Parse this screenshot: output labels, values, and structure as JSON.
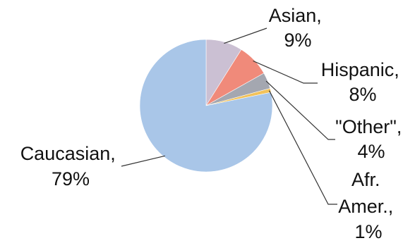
{
  "chart_data": {
    "type": "pie",
    "title": "",
    "start_angle_deg": 0,
    "direction": "clockwise",
    "slices": [
      {
        "name": "Asian",
        "label_line1": "Asian,",
        "label_line2": "9%",
        "value": 9,
        "color": "#cbc0d3"
      },
      {
        "name": "Hispanic",
        "label_line1": "Hispanic,",
        "label_line2": "8%",
        "value": 8,
        "color": "#f08a7a"
      },
      {
        "name": "\"Other\"",
        "label_line1": "\"Other\",",
        "label_line2": "4%",
        "value": 4,
        "color": "#a4a7b0"
      },
      {
        "name": "Afr. Amer.",
        "label_line1": "Afr.",
        "label_line2": "Amer.,",
        "label_line3": "1%",
        "value": 1,
        "color": "#f2c25a"
      },
      {
        "name": "Caucasian",
        "label_line1": "Caucasian,",
        "label_line2": "79%",
        "value": 79,
        "color": "#a9c6e8"
      }
    ]
  }
}
